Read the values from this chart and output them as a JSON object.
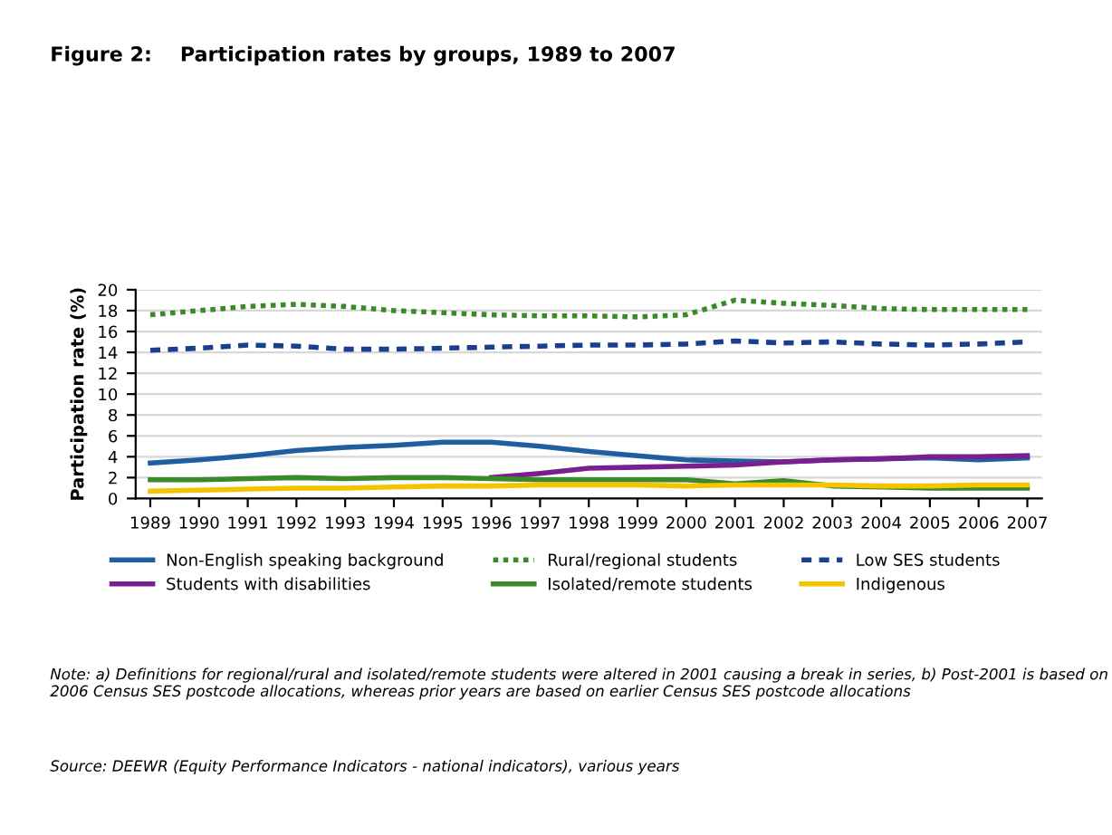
{
  "chart_data": {
    "type": "line",
    "title": "Figure 2:    Participation rates by groups, 1989 to 2007",
    "ylabel": "Participation rate (%)",
    "categories": [
      "1989",
      "1990",
      "1991",
      "1992",
      "1993",
      "1994",
      "1995",
      "1996",
      "1997",
      "1998",
      "1999",
      "2000",
      "2001",
      "2002",
      "2003",
      "2004",
      "2005",
      "2006",
      "2007"
    ],
    "ylim": [
      0,
      20
    ],
    "yticks": [
      0,
      2,
      4,
      6,
      8,
      10,
      12,
      14,
      16,
      18,
      20
    ],
    "grid": "y",
    "legend": "bottom",
    "marker": "none",
    "series": [
      {
        "name": "Non-English speaking background",
        "color": "#1f5fa0",
        "line_style": "solid",
        "values": [
          3.4,
          3.7,
          4.1,
          4.6,
          4.9,
          5.1,
          5.4,
          5.4,
          5.0,
          4.5,
          4.1,
          3.7,
          3.6,
          3.5,
          3.7,
          3.8,
          3.9,
          3.7,
          3.9
        ]
      },
      {
        "name": "Rural/regional students",
        "color": "#3a8a2a",
        "line_style": "dotted",
        "values": [
          17.6,
          18.0,
          18.4,
          18.6,
          18.4,
          18.0,
          17.8,
          17.6,
          17.5,
          17.5,
          17.4,
          17.6,
          19.0,
          18.7,
          18.5,
          18.2,
          18.1,
          18.1,
          18.1
        ]
      },
      {
        "name": "Low SES students",
        "color": "#1a3f8f",
        "line_style": "dashed",
        "values": [
          14.2,
          14.4,
          14.7,
          14.6,
          14.3,
          14.3,
          14.4,
          14.5,
          14.6,
          14.7,
          14.7,
          14.8,
          15.1,
          14.9,
          15.0,
          14.8,
          14.7,
          14.8,
          15.0
        ]
      },
      {
        "name": "Students with disabilities",
        "color": "#7b1f8f",
        "line_style": "solid",
        "values": [
          null,
          null,
          null,
          null,
          null,
          null,
          null,
          2.0,
          2.4,
          2.9,
          3.0,
          3.1,
          3.2,
          3.5,
          3.7,
          3.8,
          4.0,
          4.0,
          4.1
        ]
      },
      {
        "name": "Isolated/remote students",
        "color": "#3a8a2a",
        "line_style": "solid",
        "values": [
          1.8,
          1.8,
          1.9,
          2.0,
          1.9,
          2.0,
          2.0,
          1.9,
          1.8,
          1.8,
          1.8,
          1.8,
          1.4,
          1.7,
          1.2,
          1.1,
          1.0,
          1.0,
          1.0
        ]
      },
      {
        "name": "Indigenous",
        "color": "#f5c400",
        "line_style": "solid",
        "values": [
          0.7,
          0.8,
          0.9,
          1.0,
          1.0,
          1.1,
          1.2,
          1.2,
          1.3,
          1.3,
          1.3,
          1.2,
          1.3,
          1.3,
          1.3,
          1.2,
          1.2,
          1.3,
          1.3
        ]
      }
    ],
    "annotations": [
      "Note: a) Definitions for regional/rural and isolated/remote students were altered in 2001 causing a break in series, b) Post-2001 is based on 2006 Census SES postcode allocations, whereas prior years are based on earlier Census SES postcode allocations",
      "Source: DEEWR (Equity Performance Indicators - national indicators), various years"
    ]
  }
}
